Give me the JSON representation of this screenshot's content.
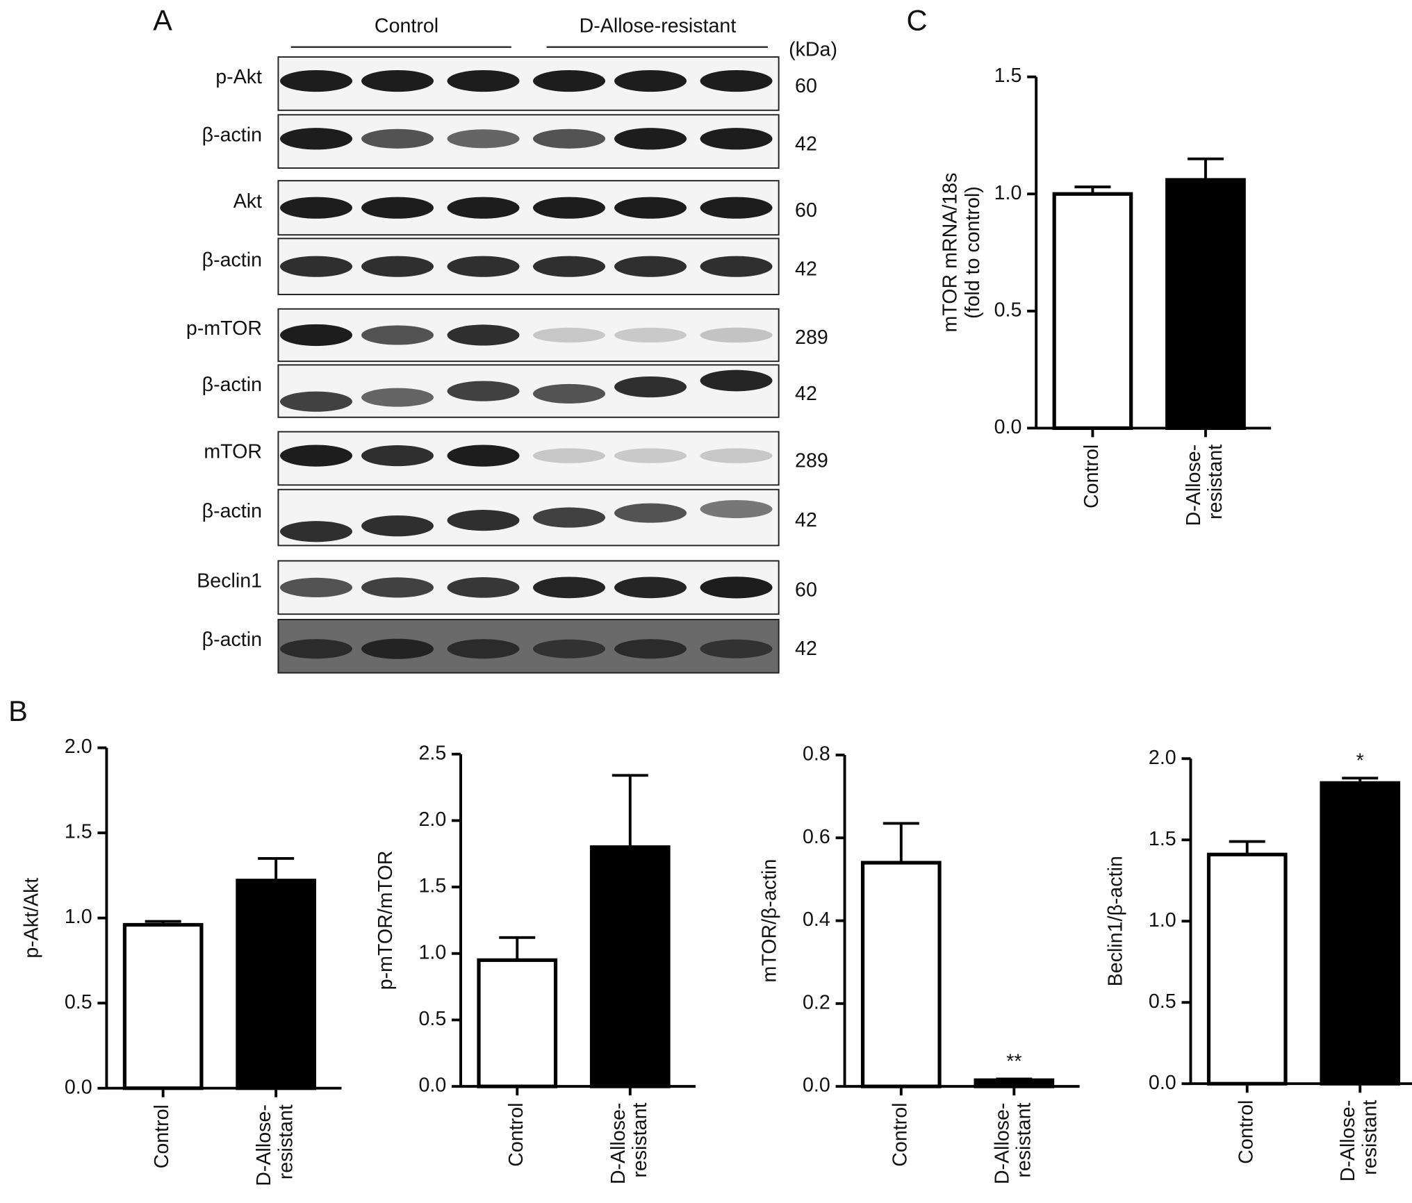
{
  "panel_labels": [
    "A",
    "B",
    "C"
  ],
  "blot": {
    "groups": [
      "Control",
      "D-Allose-resistant"
    ],
    "unit": "(kDa)",
    "rows": [
      {
        "label": "p-Akt",
        "kda": "60"
      },
      {
        "label": "β-actin",
        "kda": "42"
      },
      {
        "label": "Akt",
        "kda": "60"
      },
      {
        "label": "β-actin",
        "kda": "42"
      },
      {
        "label": "p-mTOR",
        "kda": "289"
      },
      {
        "label": "β-actin",
        "kda": "42"
      },
      {
        "label": "mTOR",
        "kda": "289"
      },
      {
        "label": "β-actin",
        "kda": "42"
      },
      {
        "label": "Beclin1",
        "kda": "60"
      },
      {
        "label": "β-actin",
        "kda": "42"
      }
    ]
  },
  "chart_data": [
    {
      "type": "bar",
      "ylabel": [
        "p-Akt/Akt"
      ],
      "categories": [
        [
          "Control"
        ],
        [
          "D-Allose-",
          "resistant"
        ]
      ],
      "values": [
        0.96,
        1.22
      ],
      "errors": [
        0.02,
        0.13
      ],
      "annotations": [
        null,
        null
      ],
      "colors": [
        "#ffffff",
        "#000000"
      ],
      "ylim": [
        0,
        2
      ],
      "yticks": [
        {
          "value": 0,
          "label": "0.0"
        },
        0.5,
        {
          "value": 1,
          "label": "1.0"
        },
        1.5,
        {
          "value": 2,
          "label": "2.0"
        }
      ]
    },
    {
      "type": "bar",
      "ylabel": [
        "p-mTOR/mTOR"
      ],
      "categories": [
        [
          "Control"
        ],
        [
          "D-Allose-",
          "resistant"
        ]
      ],
      "values": [
        0.95,
        1.8
      ],
      "errors": [
        0.17,
        0.54
      ],
      "annotations": [
        null,
        null
      ],
      "colors": [
        "#ffffff",
        "#000000"
      ],
      "ylim": [
        0,
        2.5
      ],
      "yticks": [
        {
          "value": 0,
          "label": "0.0"
        },
        0.5,
        {
          "value": 1,
          "label": "1.0"
        },
        1.5,
        {
          "value": 2,
          "label": "2.0"
        },
        2.5
      ]
    },
    {
      "type": "bar",
      "ylabel": [
        "mTOR/β-actin"
      ],
      "categories": [
        [
          "Control"
        ],
        [
          "D-Allose-",
          "resistant"
        ]
      ],
      "values": [
        0.54,
        0.015
      ],
      "errors": [
        0.095,
        0.003
      ],
      "annotations": [
        null,
        "**"
      ],
      "colors": [
        "#ffffff",
        "#000000"
      ],
      "ylim": [
        0,
        0.8
      ],
      "yticks": [
        {
          "value": 0,
          "label": "0.0"
        },
        0.2,
        0.4,
        0.6,
        0.8
      ]
    },
    {
      "type": "bar",
      "ylabel": [
        "Beclin1/β-actin"
      ],
      "categories": [
        [
          "Control"
        ],
        [
          "D-Allose-",
          "resistant"
        ]
      ],
      "values": [
        1.41,
        1.85
      ],
      "errors": [
        0.08,
        0.03
      ],
      "annotations": [
        null,
        "*"
      ],
      "colors": [
        "#ffffff",
        "#000000"
      ],
      "ylim": [
        0,
        2
      ],
      "yticks": [
        {
          "value": 0,
          "label": "0.0"
        },
        0.5,
        {
          "value": 1,
          "label": "1.0"
        },
        1.5,
        {
          "value": 2,
          "label": "2.0"
        }
      ]
    },
    {
      "type": "bar",
      "ylabel": [
        "mTOR mRNA/18s",
        "(fold to control)"
      ],
      "categories": [
        [
          "Control"
        ],
        [
          "D-Allose-",
          "resistant"
        ]
      ],
      "values": [
        1.0,
        1.06
      ],
      "errors": [
        0.03,
        0.09
      ],
      "annotations": [
        null,
        null
      ],
      "colors": [
        "#ffffff",
        "#000000"
      ],
      "ylim": [
        0,
        1.5
      ],
      "yticks": [
        {
          "value": 0,
          "label": "0.0"
        },
        0.5,
        {
          "value": 1,
          "label": "1.0"
        },
        1.5
      ]
    }
  ]
}
